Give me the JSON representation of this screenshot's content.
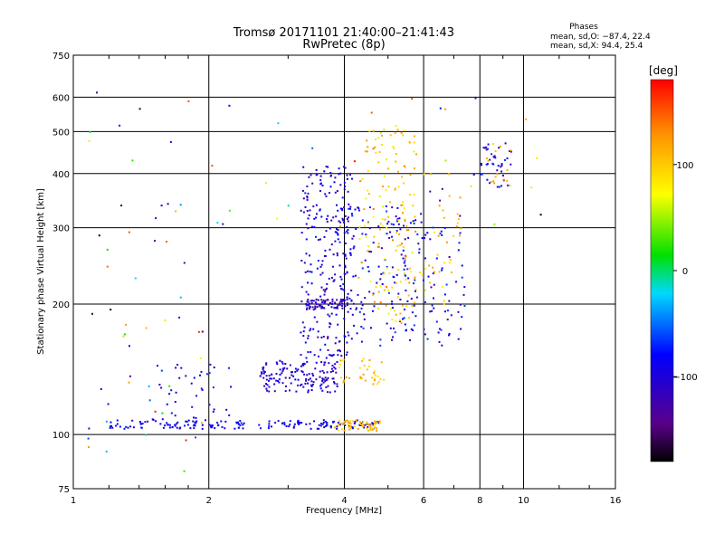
{
  "chart_data": {
    "type": "scatter",
    "title": "Tromsø 20171101 21:40:00–21:41:43",
    "subtitle": "RwPretec (8p)",
    "xlabel": "Frequency [MHz]",
    "ylabel": "Stationary phase Virtual Height [km]",
    "x_scale": "log",
    "y_scale": "log",
    "xlim": [
      1,
      16
    ],
    "ylim": [
      75,
      750
    ],
    "x_ticks": [
      1,
      2,
      4,
      6,
      8,
      10,
      16
    ],
    "x_tick_labels": [
      "1",
      "2",
      "4",
      "6",
      "8",
      "10",
      "16"
    ],
    "y_ticks": [
      75,
      100,
      200,
      300,
      400,
      500,
      600,
      750
    ],
    "y_tick_labels": [
      "75",
      "100",
      "200",
      "300",
      "400",
      "500",
      "600",
      "750"
    ],
    "grid": true,
    "phase_info": {
      "title": "Phases",
      "line_o": "mean, sd,O: −87.4, 22.4",
      "line_x": "mean, sd,X:  94.4, 25.4"
    },
    "colorbar": {
      "unit": "[deg]",
      "min": -180,
      "max": 180,
      "ticks": [
        100,
        0,
        -100
      ],
      "tick_labels": [
        "100",
        "0",
        "−100"
      ]
    },
    "clusters": [
      {
        "x": [
          1.2,
          4.8
        ],
        "y": [
          103,
          108
        ],
        "phase": [
          -110,
          -70
        ],
        "n": 170
      },
      {
        "x": [
          3.8,
          4.8
        ],
        "y": [
          102,
          108
        ],
        "phase": [
          80,
          130
        ],
        "n": 60
      },
      {
        "x": [
          1.5,
          2.3
        ],
        "y": [
          108,
          150
        ],
        "phase": [
          -120,
          -60
        ],
        "n": 40
      },
      {
        "x": [
          2.6,
          3.9
        ],
        "y": [
          125,
          148
        ],
        "phase": [
          -130,
          -80
        ],
        "n": 150
      },
      {
        "x": [
          3.2,
          4.2
        ],
        "y": [
          150,
          420
        ],
        "phase": [
          -130,
          -70
        ],
        "n": 260
      },
      {
        "x": [
          3.3,
          4.2
        ],
        "y": [
          195,
          205
        ],
        "phase": [
          -140,
          -100
        ],
        "n": 60
      },
      {
        "x": [
          3.9,
          5.5
        ],
        "y": [
          160,
          340
        ],
        "phase": [
          -120,
          -60
        ],
        "n": 120
      },
      {
        "x": [
          4.3,
          5.8
        ],
        "y": [
          180,
          520
        ],
        "phase": [
          60,
          140
        ],
        "n": 140
      },
      {
        "x": [
          3.9,
          4.9
        ],
        "y": [
          130,
          150
        ],
        "phase": [
          80,
          130
        ],
        "n": 35
      },
      {
        "x": [
          5.4,
          7.5
        ],
        "y": [
          160,
          320
        ],
        "phase": [
          -130,
          -60
        ],
        "n": 90
      },
      {
        "x": [
          5.2,
          7.3
        ],
        "y": [
          200,
          400
        ],
        "phase": [
          80,
          130
        ],
        "n": 50
      },
      {
        "x": [
          8.0,
          9.4
        ],
        "y": [
          370,
          470
        ],
        "phase": [
          -130,
          -60
        ],
        "n": 40
      },
      {
        "x": [
          8.0,
          9.4
        ],
        "y": [
          370,
          470
        ],
        "phase": [
          90,
          130
        ],
        "n": 15
      },
      {
        "x": [
          1.05,
          2.0
        ],
        "y": [
          80,
          650
        ],
        "phase": [
          -180,
          180
        ],
        "n": 55
      },
      {
        "x": [
          2.0,
          11.0
        ],
        "y": [
          300,
          600
        ],
        "phase": [
          -180,
          180
        ],
        "n": 30
      }
    ]
  }
}
